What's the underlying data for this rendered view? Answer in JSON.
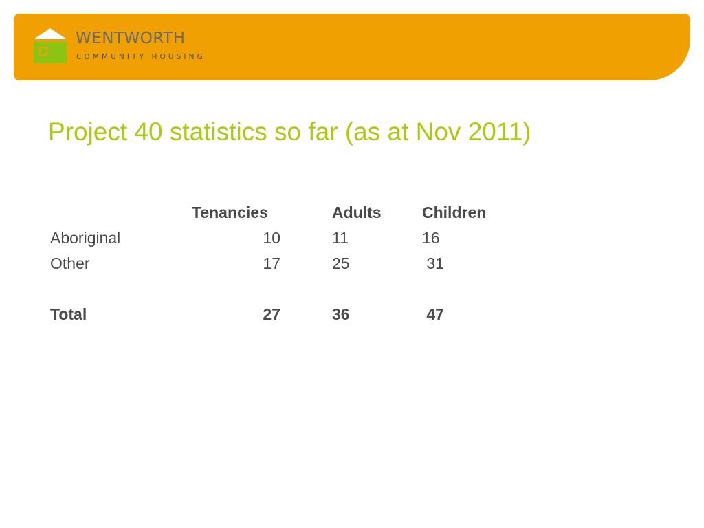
{
  "header": {
    "brand_name": "WENTWORTH",
    "brand_tagline": "COMMUNITY HOUSING",
    "colors": {
      "banner": "#f0a000",
      "logo_green": "#8cc414",
      "logo_white": "#ffffff"
    }
  },
  "slide": {
    "title": "Project 40 statistics so far (as at Nov 2011)",
    "title_color": "#a8cc14"
  },
  "table": {
    "columns": [
      "Tenancies",
      "Adults",
      "Children"
    ],
    "rows": [
      {
        "label": "Aboriginal",
        "tenancies": "10",
        "adults": "11",
        "children": "16"
      },
      {
        "label": "Other",
        "tenancies": "17",
        "adults": "25",
        "children": " 31"
      }
    ],
    "total": {
      "label": "Total",
      "tenancies": "27",
      "adults": "36",
      "children": " 47"
    }
  }
}
